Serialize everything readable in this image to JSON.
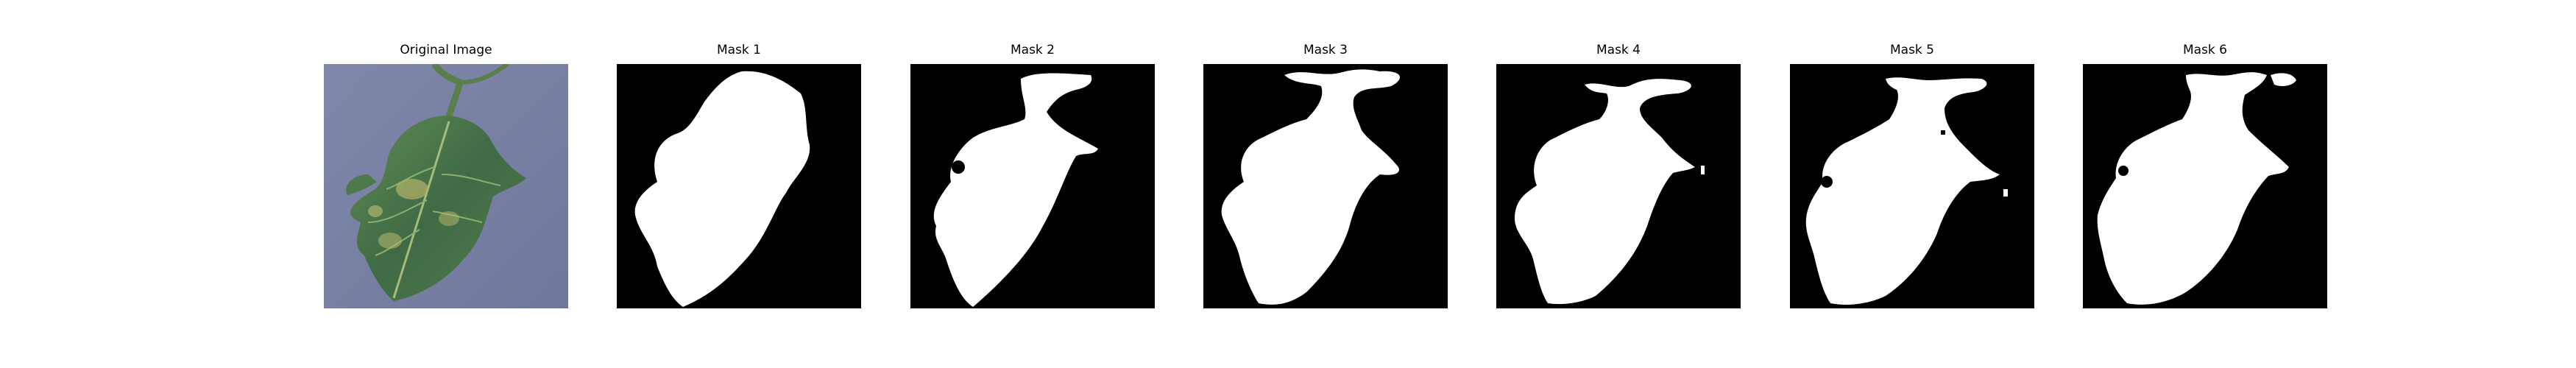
{
  "figure": {
    "panels": [
      {
        "title": "Original Image",
        "kind": "photo",
        "icon": "leaf-photo"
      },
      {
        "title": "Mask 1",
        "kind": "mask",
        "variant": 1
      },
      {
        "title": "Mask 2",
        "kind": "mask",
        "variant": 2
      },
      {
        "title": "Mask 3",
        "kind": "mask",
        "variant": 3
      },
      {
        "title": "Mask 4",
        "kind": "mask",
        "variant": 4
      },
      {
        "title": "Mask 5",
        "kind": "mask",
        "variant": 5
      },
      {
        "title": "Mask 6",
        "kind": "mask",
        "variant": 6
      }
    ],
    "colors": {
      "background": "#ffffff",
      "mask_background": "#000000",
      "mask_foreground": "#ffffff",
      "photo_background": "#7b84a8",
      "leaf_dark": "#3f6a45",
      "leaf_light": "#6f9a5c",
      "leaf_yellow": "#b3b46a",
      "stem": "#5b7f4c"
    }
  }
}
